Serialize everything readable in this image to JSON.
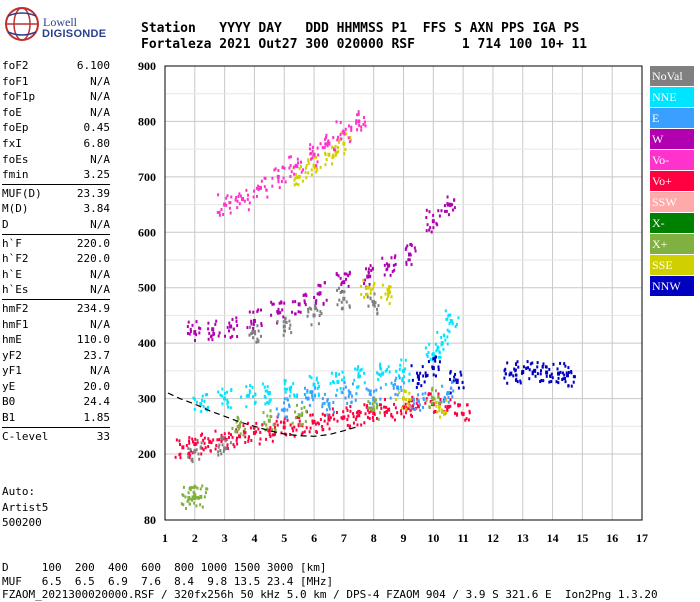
{
  "logo": {
    "line1": "Lowell",
    "line2": "DIGISONDE"
  },
  "header": {
    "line1": "Station   YYYY DAY   DDD HHMMSS P1  FFS S AXN PPS IGA PS",
    "line2": "Fortaleza 2021 Out27 300 020000 RSF      1 714 100 10+ 11"
  },
  "params": {
    "group1": [
      {
        "label": "foF2",
        "value": "6.100"
      },
      {
        "label": "foF1",
        "value": "N/A"
      },
      {
        "label": "foF1p",
        "value": "N/A"
      },
      {
        "label": "foE",
        "value": "N/A"
      },
      {
        "label": "foEp",
        "value": "0.45"
      },
      {
        "label": "fxI",
        "value": "6.80"
      },
      {
        "label": "foEs",
        "value": "N/A"
      },
      {
        "label": "fmin",
        "value": "3.25"
      }
    ],
    "group2": [
      {
        "label": "MUF(D)",
        "value": "23.39"
      },
      {
        "label": "M(D)",
        "value": "3.84"
      },
      {
        "label": "D",
        "value": "N/A"
      }
    ],
    "group3": [
      {
        "label": "h`F",
        "value": "220.0"
      },
      {
        "label": "h`F2",
        "value": "220.0"
      },
      {
        "label": "h`E",
        "value": "N/A"
      },
      {
        "label": "h`Es",
        "value": "N/A"
      }
    ],
    "group4": [
      {
        "label": "hmF2",
        "value": "234.9"
      },
      {
        "label": "hmF1",
        "value": "N/A"
      },
      {
        "label": "hmE",
        "value": "110.0"
      },
      {
        "label": "yF2",
        "value": "23.7"
      },
      {
        "label": "yF1",
        "value": "N/A"
      },
      {
        "label": "yE",
        "value": "20.0"
      },
      {
        "label": "B0",
        "value": "24.4"
      },
      {
        "label": "B1",
        "value": "1.85"
      }
    ],
    "group5": [
      {
        "label": "C-level",
        "value": "33"
      }
    ]
  },
  "auto": {
    "line1": "Auto:",
    "line2": "Artist5",
    "line3": "500200"
  },
  "legend": [
    {
      "label": "NoVal",
      "color": "#808080"
    },
    {
      "label": "NNE",
      "color": "#00e5ff"
    },
    {
      "label": "E",
      "color": "#3aa0ff"
    },
    {
      "label": "W",
      "color": "#b000b0"
    },
    {
      "label": "Vo-",
      "color": "#ff33cc"
    },
    {
      "label": "Vo+",
      "color": "#ff0040"
    },
    {
      "label": "SSW",
      "color": "#ffaaaa"
    },
    {
      "label": "X-",
      "color": "#008000"
    },
    {
      "label": "X+",
      "color": "#80b040"
    },
    {
      "label": "SSE",
      "color": "#d0d000"
    },
    {
      "label": "NNW",
      "color": "#0000c0"
    }
  ],
  "chart_data": {
    "type": "scatter",
    "xlabel": "",
    "ylabel": "",
    "xlim": [
      1,
      17
    ],
    "ylim": [
      80,
      900
    ],
    "x_ticks": [
      "1",
      "2",
      "3",
      "4",
      "5",
      "6",
      "7",
      "8",
      "9",
      "10",
      "11",
      "12",
      "13",
      "14",
      "15",
      "16",
      "17"
    ],
    "y_ticks": [
      "80",
      "200",
      "300",
      "400",
      "500",
      "600",
      "700",
      "800",
      "900"
    ],
    "series": [
      {
        "name": "Vo+",
        "color": "#ff0040",
        "points": [
          [
            1.6,
            212
          ],
          [
            2,
            218
          ],
          [
            2.5,
            222
          ],
          [
            3,
            228
          ],
          [
            3.5,
            232
          ],
          [
            4,
            238
          ],
          [
            4.5,
            242
          ],
          [
            5,
            248
          ],
          [
            5.5,
            252
          ],
          [
            6,
            258
          ],
          [
            6.5,
            262
          ],
          [
            7,
            266
          ],
          [
            7.5,
            270
          ],
          [
            8,
            274
          ],
          [
            8.5,
            280
          ],
          [
            9,
            284
          ],
          [
            9.5,
            286
          ],
          [
            10,
            290
          ],
          [
            10.5,
            285
          ],
          [
            11,
            272
          ]
        ]
      },
      {
        "name": "NNE",
        "color": "#00e5ff",
        "points": [
          [
            2.2,
            290
          ],
          [
            3,
            300
          ],
          [
            3.8,
            305
          ],
          [
            4.5,
            310
          ],
          [
            5.2,
            318
          ],
          [
            6,
            325
          ],
          [
            6.8,
            330
          ],
          [
            7.5,
            340
          ],
          [
            8.3,
            345
          ],
          [
            9,
            350
          ],
          [
            10,
            380
          ],
          [
            10.3,
            400
          ],
          [
            10.6,
            440
          ]
        ]
      },
      {
        "name": "W",
        "color": "#b000b0",
        "points": [
          [
            2,
            420
          ],
          [
            2.6,
            425
          ],
          [
            3.2,
            430
          ],
          [
            4,
            440
          ],
          [
            4.8,
            455
          ],
          [
            5.5,
            470
          ],
          [
            6.2,
            490
          ],
          [
            7,
            510
          ],
          [
            7.8,
            520
          ],
          [
            8.5,
            540
          ],
          [
            9.2,
            560
          ],
          [
            10,
            620
          ],
          [
            10.5,
            650
          ]
        ]
      },
      {
        "name": "NNW",
        "color": "#0000c0",
        "points": [
          [
            12.6,
            345
          ],
          [
            13,
            348
          ],
          [
            13.4,
            350
          ],
          [
            13.8,
            347
          ],
          [
            14.2,
            345
          ],
          [
            14.5,
            342
          ],
          [
            9.5,
            340
          ],
          [
            10,
            355
          ],
          [
            10.8,
            330
          ]
        ]
      },
      {
        "name": "SSE",
        "color": "#d0d000",
        "points": [
          [
            5.5,
            700
          ],
          [
            6,
            720
          ],
          [
            6.5,
            740
          ],
          [
            7,
            760
          ],
          [
            7.8,
            500
          ],
          [
            8.5,
            490
          ],
          [
            9,
            300
          ],
          [
            10.2,
            285
          ]
        ]
      },
      {
        "name": "E",
        "color": "#3aa0ff",
        "points": [
          [
            5,
            280
          ],
          [
            5.8,
            300
          ],
          [
            6.5,
            290
          ],
          [
            7.2,
            310
          ],
          [
            8,
            300
          ],
          [
            8.8,
            320
          ],
          [
            9.5,
            295
          ],
          [
            10.5,
            310
          ]
        ]
      },
      {
        "name": "X+",
        "color": "#80b040",
        "points": [
          [
            1.8,
            120
          ],
          [
            2,
            125
          ],
          [
            2.2,
            122
          ],
          [
            3.5,
            250
          ],
          [
            4.5,
            260
          ],
          [
            5.5,
            270
          ],
          [
            8,
            280
          ],
          [
            10,
            300
          ]
        ]
      },
      {
        "name": "Vo-",
        "color": "#ff33cc",
        "points": [
          [
            3,
            650
          ],
          [
            3.6,
            660
          ],
          [
            4.2,
            680
          ],
          [
            4.8,
            700
          ],
          [
            5.4,
            720
          ],
          [
            6,
            740
          ],
          [
            6.5,
            760
          ],
          [
            7,
            780
          ],
          [
            7.5,
            800
          ]
        ]
      },
      {
        "name": "NoVal",
        "color": "#808080",
        "points": [
          [
            2,
            205
          ],
          [
            3,
            210
          ],
          [
            4,
            420
          ],
          [
            5,
            430
          ],
          [
            6,
            450
          ],
          [
            7,
            480
          ],
          [
            8,
            470
          ]
        ]
      }
    ],
    "curve": [
      [
        1.1,
        310
      ],
      [
        1.5,
        300
      ],
      [
        2,
        290
      ],
      [
        2.5,
        278
      ],
      [
        3,
        268
      ],
      [
        3.5,
        258
      ],
      [
        4,
        250
      ],
      [
        4.5,
        242
      ],
      [
        5,
        236
      ],
      [
        5.5,
        233
      ],
      [
        6,
        232
      ],
      [
        6.5,
        235
      ],
      [
        7,
        242
      ],
      [
        7.5,
        250
      ]
    ]
  },
  "bottom": {
    "line1": "D     100  200  400  600  800 1000 1500 3000 [km]",
    "line2": "MUF   6.5  6.5  6.9  7.6  8.4  9.8 13.5 23.4 [MHz]",
    "line3": "FZAOM_2021300020000.RSF / 320fx256h 50 kHz 5.0 km / DPS-4 FZAOM 904 / 3.9 S 321.6 E  Ion2Png 1.3.20"
  }
}
